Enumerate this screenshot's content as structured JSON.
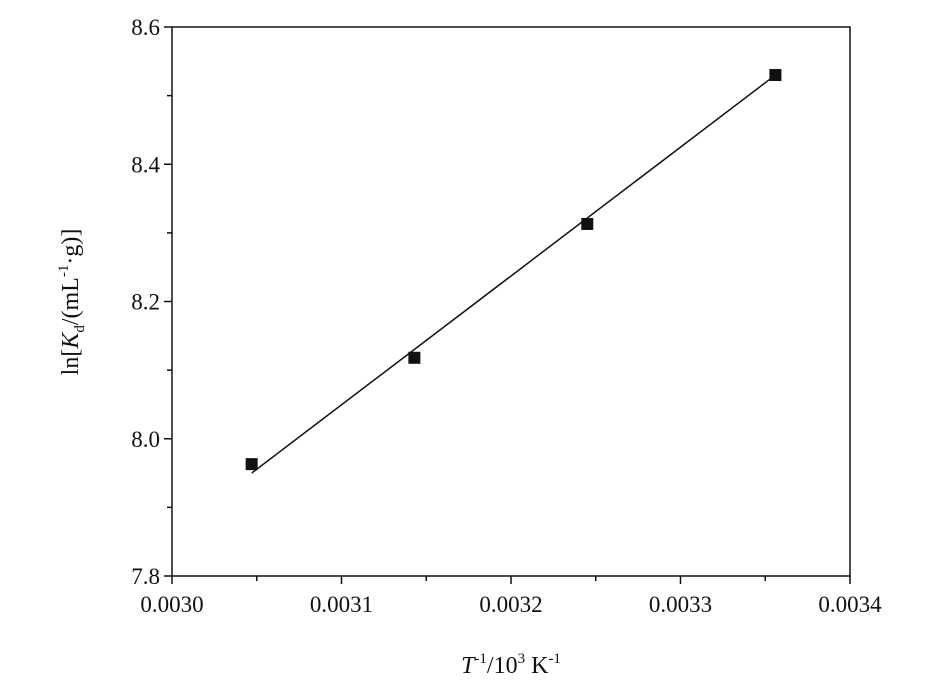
{
  "chart_data": {
    "type": "scatter",
    "title": "",
    "xlabel": {
      "base1": "T",
      "sup1": "-1",
      "mid": "/10",
      "sup2": "3",
      "unit": " K",
      "sup3": "-1"
    },
    "ylabel": {
      "pre": "ln[",
      "var": "K",
      "sub": "d",
      "post1": "/(mL",
      "sup": "-1",
      "post2": "·g)]"
    },
    "xlim": [
      0.003,
      0.0034
    ],
    "ylim": [
      7.8,
      8.6
    ],
    "x_ticks": [
      "0.0030",
      "0.0031",
      "0.0032",
      "0.0033",
      "0.0034"
    ],
    "y_ticks": [
      "7.8",
      "8.0",
      "8.2",
      "8.4",
      "8.6"
    ],
    "grid": false,
    "series": [
      {
        "marker": "square",
        "color": "#111111",
        "points": [
          {
            "x": 0.003047,
            "y": 7.963
          },
          {
            "x": 0.003143,
            "y": 8.118
          },
          {
            "x": 0.003245,
            "y": 8.313
          },
          {
            "x": 0.003356,
            "y": 8.53
          }
        ]
      }
    ],
    "fit_line": {
      "color": "#111111",
      "x": [
        0.003047,
        0.003356
      ],
      "y": [
        7.95,
        8.53
      ]
    }
  }
}
